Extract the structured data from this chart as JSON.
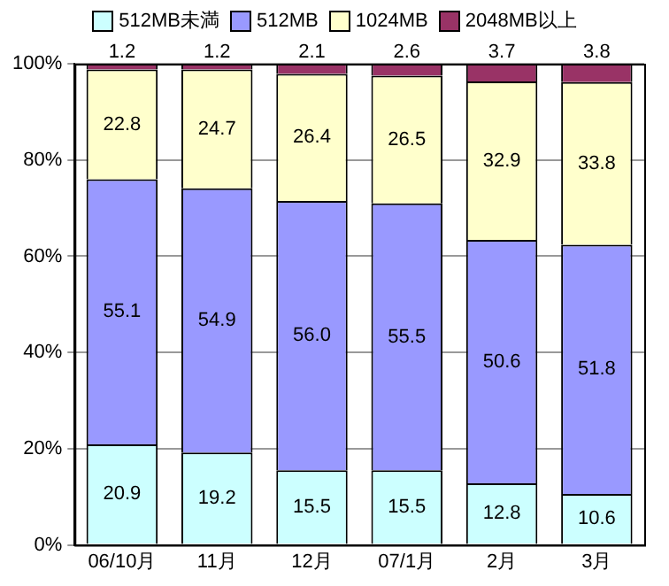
{
  "chart_data": {
    "type": "bar",
    "stacked": true,
    "categories": [
      "06/10月",
      "11月",
      "12月",
      "07/1月",
      "2月",
      "3月"
    ],
    "series": [
      {
        "name": "512MB未満",
        "color": "#ccffff",
        "values": [
          20.9,
          19.2,
          15.5,
          15.5,
          12.8,
          10.6
        ],
        "value_labels": [
          "20.9",
          "19.2",
          "15.5",
          "15.5",
          "12.8",
          "10.6"
        ]
      },
      {
        "name": "512MB",
        "color": "#9999ff",
        "values": [
          55.1,
          54.9,
          56.0,
          55.5,
          50.6,
          51.8
        ],
        "value_labels": [
          "55.1",
          "54.9",
          "56.0",
          "55.5",
          "50.6",
          "51.8"
        ]
      },
      {
        "name": "1024MB",
        "color": "#ffffcc",
        "values": [
          22.8,
          24.7,
          26.4,
          26.5,
          32.9,
          33.8
        ],
        "value_labels": [
          "22.8",
          "24.7",
          "26.4",
          "26.5",
          "32.9",
          "33.8"
        ]
      },
      {
        "name": "2048MB以上",
        "color": "#993366",
        "values": [
          1.2,
          1.2,
          2.1,
          2.6,
          3.7,
          3.8
        ],
        "value_labels": [
          "1.2",
          "1.2",
          "2.1",
          "2.6",
          "3.7",
          "3.8"
        ]
      }
    ],
    "ylim": [
      0,
      100
    ],
    "yticks": [
      {
        "value": 0,
        "label": "0%"
      },
      {
        "value": 20,
        "label": "20%"
      },
      {
        "value": 40,
        "label": "40%"
      },
      {
        "value": 60,
        "label": "60%"
      },
      {
        "value": 80,
        "label": "80%"
      },
      {
        "value": 100,
        "label": "100%"
      }
    ],
    "grid": "y",
    "legend": "top"
  }
}
